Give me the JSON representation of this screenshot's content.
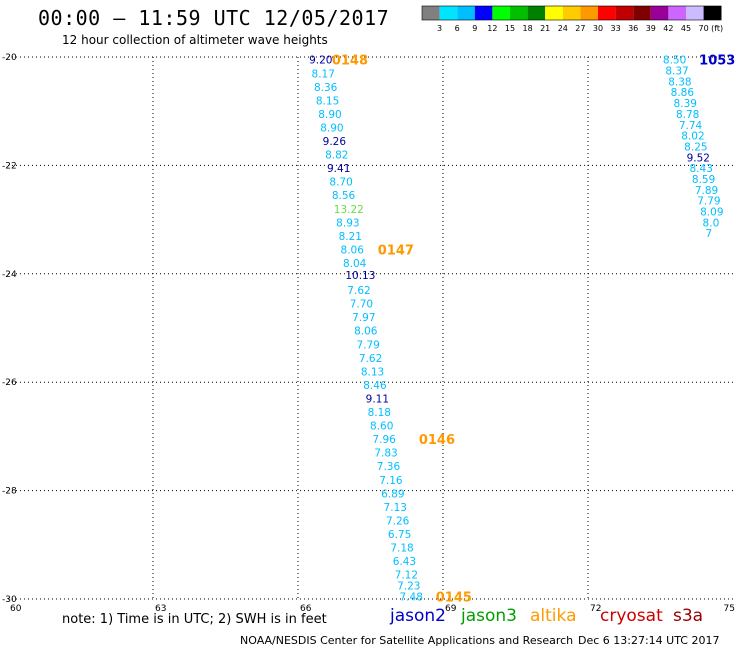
{
  "header": {
    "title": "00:00 – 11:59 UTC 12/05/2017",
    "subtitle": "12 hour collection of altimeter wave heights"
  },
  "footer": {
    "note": "note: 1) Time is in UTC; 2) SWH is in feet",
    "satellites": [
      {
        "name": "jason2",
        "color": "#0000cc"
      },
      {
        "name": "jason3",
        "color": "#00a000"
      },
      {
        "name": "altika",
        "color": "#ff9900"
      },
      {
        "name": "cryosat",
        "color": "#cc0000"
      },
      {
        "name": "s3a",
        "color": "#990000"
      }
    ],
    "credit": "NOAA/NESDIS Center for Satellite Applications and Research",
    "timestamp": "Dec  6 13:27:14 UTC 2017"
  },
  "colorbar": {
    "labels": [
      "3",
      "6",
      "9",
      "12",
      "15",
      "18",
      "21",
      "24",
      "27",
      "30",
      "33",
      "36",
      "39",
      "42",
      "45",
      "70"
    ],
    "unit": "(ft)",
    "colors": [
      "#808080",
      "#00e5ff",
      "#00bfff",
      "#0000ff",
      "#00ff00",
      "#00c000",
      "#008000",
      "#ffff00",
      "#ffcc00",
      "#ff9900",
      "#ff0000",
      "#c00000",
      "#800000",
      "#990099",
      "#cc66ff",
      "#ccbbff",
      "#000000"
    ]
  },
  "chart_data": {
    "type": "scatter",
    "title": "00:00 – 11:59 UTC 12/05/2017",
    "xlabel": "",
    "ylabel": "",
    "xlim": [
      60,
      75
    ],
    "ylim": [
      -30,
      -20
    ],
    "xticks": [
      60,
      63,
      66,
      69,
      72,
      75
    ],
    "yticks": [
      -20,
      -22,
      -24,
      -26,
      -28,
      -30
    ],
    "grid": true,
    "series": [
      {
        "name": "altika",
        "points": [
          {
            "lon": 66.23,
            "lat": -20.05,
            "swh": "9.20",
            "color": "#000099"
          },
          {
            "lon": 66.28,
            "lat": -20.3,
            "swh": "8.17",
            "color": "#00bfff"
          },
          {
            "lon": 66.33,
            "lat": -20.55,
            "swh": "8.36",
            "color": "#00bfff"
          },
          {
            "lon": 66.37,
            "lat": -20.8,
            "swh": "8.15",
            "color": "#00bfff"
          },
          {
            "lon": 66.42,
            "lat": -21.05,
            "swh": "8.90",
            "color": "#00bfff"
          },
          {
            "lon": 66.46,
            "lat": -21.3,
            "swh": "8.90",
            "color": "#00bfff"
          },
          {
            "lon": 66.51,
            "lat": -21.55,
            "swh": "9.26",
            "color": "#000099"
          },
          {
            "lon": 66.56,
            "lat": -21.8,
            "swh": "8.82",
            "color": "#00bfff"
          },
          {
            "lon": 66.6,
            "lat": -22.05,
            "swh": "9.41",
            "color": "#000099"
          },
          {
            "lon": 66.65,
            "lat": -22.3,
            "swh": "8.70",
            "color": "#00bfff"
          },
          {
            "lon": 66.7,
            "lat": -22.55,
            "swh": "8.56",
            "color": "#00bfff"
          },
          {
            "lon": 66.74,
            "lat": -22.8,
            "swh": "13.22",
            "color": "#66dd44"
          },
          {
            "lon": 66.79,
            "lat": -23.05,
            "swh": "8.93",
            "color": "#00bfff"
          },
          {
            "lon": 66.84,
            "lat": -23.3,
            "swh": "8.21",
            "color": "#00bfff"
          },
          {
            "lon": 66.88,
            "lat": -23.55,
            "swh": "8.06",
            "color": "#00bfff"
          },
          {
            "lon": 66.93,
            "lat": -23.8,
            "swh": "8.04",
            "color": "#00bfff"
          },
          {
            "lon": 66.98,
            "lat": -24.02,
            "swh": "10.13",
            "color": "#000099"
          },
          {
            "lon": 67.02,
            "lat": -24.3,
            "swh": "7.62",
            "color": "#00bfff"
          },
          {
            "lon": 67.07,
            "lat": -24.55,
            "swh": "7.70",
            "color": "#00bfff"
          },
          {
            "lon": 67.12,
            "lat": -24.8,
            "swh": "7.97",
            "color": "#00bfff"
          },
          {
            "lon": 67.16,
            "lat": -25.05,
            "swh": "8.06",
            "color": "#00bfff"
          },
          {
            "lon": 67.21,
            "lat": -25.3,
            "swh": "7.79",
            "color": "#00bfff"
          },
          {
            "lon": 67.26,
            "lat": -25.55,
            "swh": "7.62",
            "color": "#00bfff"
          },
          {
            "lon": 67.3,
            "lat": -25.8,
            "swh": "8.13",
            "color": "#00bfff"
          },
          {
            "lon": 67.35,
            "lat": -26.05,
            "swh": "8.46",
            "color": "#00bfff"
          },
          {
            "lon": 67.4,
            "lat": -26.3,
            "swh": "9.11",
            "color": "#000099"
          },
          {
            "lon": 67.44,
            "lat": -26.55,
            "swh": "8.18",
            "color": "#00bfff"
          },
          {
            "lon": 67.49,
            "lat": -26.8,
            "swh": "8.60",
            "color": "#00bfff"
          },
          {
            "lon": 67.54,
            "lat": -27.05,
            "swh": "7.96",
            "color": "#00bfff"
          },
          {
            "lon": 67.58,
            "lat": -27.3,
            "swh": "7.83",
            "color": "#00bfff"
          },
          {
            "lon": 67.63,
            "lat": -27.55,
            "swh": "7.36",
            "color": "#00bfff"
          },
          {
            "lon": 67.68,
            "lat": -27.8,
            "swh": "7.16",
            "color": "#00bfff"
          },
          {
            "lon": 67.72,
            "lat": -28.05,
            "swh": "6.89",
            "color": "#00bfff"
          },
          {
            "lon": 67.77,
            "lat": -28.3,
            "swh": "7.13",
            "color": "#00bfff"
          },
          {
            "lon": 67.82,
            "lat": -28.55,
            "swh": "7.26",
            "color": "#00bfff"
          },
          {
            "lon": 67.86,
            "lat": -28.8,
            "swh": "6.75",
            "color": "#00bfff"
          },
          {
            "lon": 67.91,
            "lat": -29.05,
            "swh": "7.18",
            "color": "#00bfff"
          },
          {
            "lon": 67.96,
            "lat": -29.3,
            "swh": "6.43",
            "color": "#00bfff"
          },
          {
            "lon": 68.0,
            "lat": -29.55,
            "swh": "7.12",
            "color": "#00bfff"
          },
          {
            "lon": 68.05,
            "lat": -29.75,
            "swh": "7.23",
            "color": "#00bfff"
          },
          {
            "lon": 68.1,
            "lat": -29.95,
            "swh": "7.48",
            "color": "#00bfff"
          }
        ],
        "time_labels": [
          {
            "lon": 66.7,
            "lat": -20.05,
            "text": "0148"
          },
          {
            "lon": 67.65,
            "lat": -23.55,
            "text": "0147"
          },
          {
            "lon": 68.5,
            "lat": -27.05,
            "text": "0146"
          },
          {
            "lon": 68.85,
            "lat": -29.95,
            "text": "0145"
          }
        ]
      },
      {
        "name": "jason2",
        "points": [
          {
            "lon": 73.55,
            "lat": -20.05,
            "swh": "8.50",
            "color": "#00bfff"
          },
          {
            "lon": 73.6,
            "lat": -20.25,
            "swh": "8.37",
            "color": "#00bfff"
          },
          {
            "lon": 73.66,
            "lat": -20.45,
            "swh": "8.38",
            "color": "#00bfff"
          },
          {
            "lon": 73.71,
            "lat": -20.65,
            "swh": "8.86",
            "color": "#00bfff"
          },
          {
            "lon": 73.77,
            "lat": -20.85,
            "swh": "8.39",
            "color": "#00bfff"
          },
          {
            "lon": 73.82,
            "lat": -21.05,
            "swh": "8.78",
            "color": "#00bfff"
          },
          {
            "lon": 73.88,
            "lat": -21.25,
            "swh": "7.74",
            "color": "#00bfff"
          },
          {
            "lon": 73.93,
            "lat": -21.45,
            "swh": "8.02",
            "color": "#00bfff"
          },
          {
            "lon": 73.99,
            "lat": -21.65,
            "swh": "8.25",
            "color": "#00bfff"
          },
          {
            "lon": 74.04,
            "lat": -21.85,
            "swh": "9.52",
            "color": "#000099"
          },
          {
            "lon": 74.1,
            "lat": -22.05,
            "swh": "8.43",
            "color": "#00bfff"
          },
          {
            "lon": 74.15,
            "lat": -22.25,
            "swh": "8.59",
            "color": "#00bfff"
          },
          {
            "lon": 74.21,
            "lat": -22.45,
            "swh": "7.89",
            "color": "#00bfff"
          },
          {
            "lon": 74.26,
            "lat": -22.65,
            "swh": "7.79",
            "color": "#00bfff"
          },
          {
            "lon": 74.32,
            "lat": -22.85,
            "swh": "8.09",
            "color": "#00bfff"
          },
          {
            "lon": 74.37,
            "lat": -23.05,
            "swh": "8.0",
            "color": "#00bfff"
          },
          {
            "lon": 74.43,
            "lat": -23.25,
            "swh": "7",
            "color": "#00bfff"
          }
        ],
        "time_labels": [
          {
            "lon": 74.3,
            "lat": -20.05,
            "text": "1053"
          }
        ]
      }
    ]
  }
}
